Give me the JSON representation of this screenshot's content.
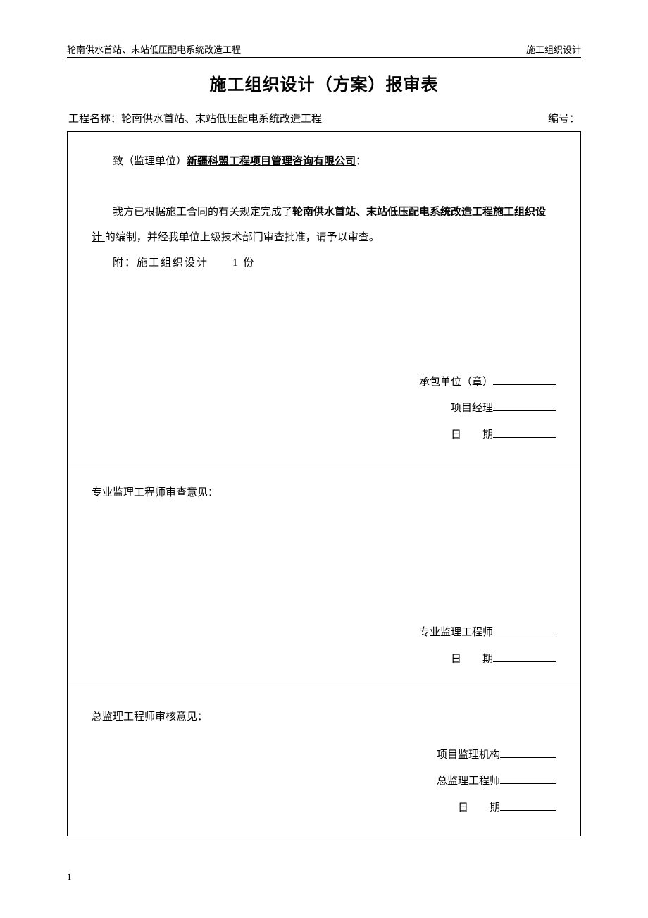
{
  "header": {
    "left": "轮南供水首站、末站低压配电系统改造工程",
    "right": "施工组织设计"
  },
  "title": "施工组织设计（方案）报审表",
  "meta": {
    "projectLabel": "工程名称：",
    "projectName": "轮南供水首站、末站低压配电系统改造工程",
    "numberLabel": "编号：",
    "numberValue": ""
  },
  "section1": {
    "salutationPrefix": "致（监理单位）",
    "salutationCompany": "新疆科盟工程项目管理咨询有限公司",
    "salutationSuffix": "：",
    "bodyPrefix": "我方已根据施工合同的有关规定完成了",
    "bodyUnderlined": "轮南供水首站、末站低压配电系统改造工程施工组织设计 ",
    "bodySuffix": "的编制，并经我单位上级技术部门审查批准，请予以审查。",
    "attachment": "附：施工组织设计　　1 份",
    "sig": {
      "contractor": "承包单位（章）",
      "pm": "项目经理",
      "date": "日　　期"
    }
  },
  "section2": {
    "heading": "专业监理工程师审查意见：",
    "sig": {
      "engineer": "专业监理工程师",
      "date": "日　　期"
    }
  },
  "section3": {
    "heading": "总监理工程师审核意见：",
    "sig": {
      "org": "项目监理机构",
      "chief": "总监理工程师",
      "date": "日　　期"
    }
  },
  "pageNumber": "1",
  "colors": {
    "text": "#000000",
    "background": "#ffffff",
    "border": "#000000"
  }
}
